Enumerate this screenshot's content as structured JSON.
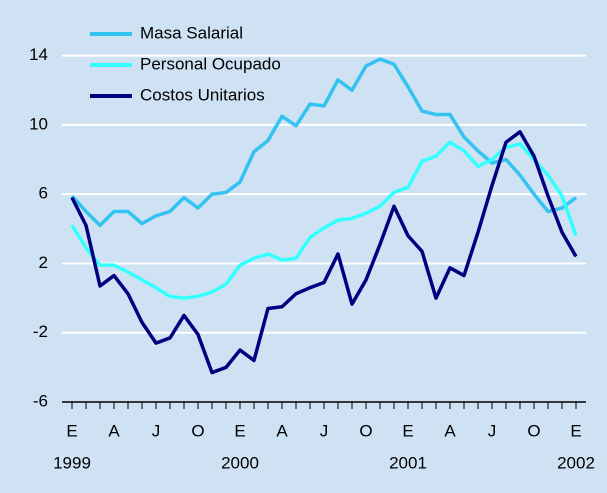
{
  "chart_data": {
    "type": "line",
    "categories": [
      "E",
      null,
      null,
      "A",
      null,
      null,
      "J",
      null,
      null,
      "O",
      null,
      null,
      "E",
      null,
      null,
      "A",
      null,
      null,
      "J",
      null,
      null,
      "O",
      null,
      null,
      "E",
      null,
      null,
      "A",
      null,
      null,
      "J",
      null,
      null,
      "O",
      null,
      null,
      "E"
    ],
    "year_labels": [
      "1999",
      "2000",
      "2001",
      "2002"
    ],
    "series": [
      {
        "name": "Masa Salarial",
        "color": "#33c3f0",
        "values": [
          5.9,
          5.0,
          4.2,
          5.0,
          5.0,
          4.3,
          4.75,
          5.0,
          5.8,
          5.2,
          6.0,
          6.1,
          6.7,
          8.45,
          9.1,
          10.5,
          9.95,
          11.2,
          11.1,
          12.6,
          12.0,
          13.4,
          13.8,
          13.5,
          12.2,
          10.8,
          10.6,
          10.6,
          9.3,
          8.5,
          7.8,
          8.0,
          7.1,
          6.0,
          5.0,
          5.2,
          5.8
        ]
      },
      {
        "name": "Personal Ocupado",
        "color": "#33ffff",
        "values": [
          4.2,
          2.9,
          1.9,
          1.9,
          1.5,
          1.05,
          0.6,
          0.1,
          0.0,
          0.1,
          0.35,
          0.8,
          1.9,
          2.3,
          2.55,
          2.2,
          2.3,
          3.5,
          4.05,
          4.5,
          4.6,
          4.9,
          5.3,
          6.1,
          6.4,
          7.9,
          8.2,
          9.0,
          8.5,
          7.6,
          8.0,
          8.7,
          8.9,
          8.0,
          7.1,
          5.9,
          3.6
        ]
      },
      {
        "name": "Costos Unitarios",
        "color": "#000080",
        "values": [
          5.8,
          4.2,
          0.7,
          1.3,
          0.25,
          -1.4,
          -2.6,
          -2.3,
          -1.0,
          -2.1,
          -4.3,
          -4.0,
          -3.0,
          -3.6,
          -0.6,
          -0.5,
          0.25,
          0.6,
          0.9,
          2.55,
          -0.35,
          1.05,
          3.1,
          5.3,
          3.6,
          2.7,
          0.0,
          1.75,
          1.3,
          3.8,
          6.5,
          9.0,
          9.6,
          8.2,
          5.9,
          3.8,
          2.4
        ]
      }
    ],
    "ylim": [
      -6,
      16
    ],
    "yticks": [
      -6,
      -2,
      2,
      6,
      10,
      14
    ],
    "grid": true,
    "legend": "top-left"
  }
}
